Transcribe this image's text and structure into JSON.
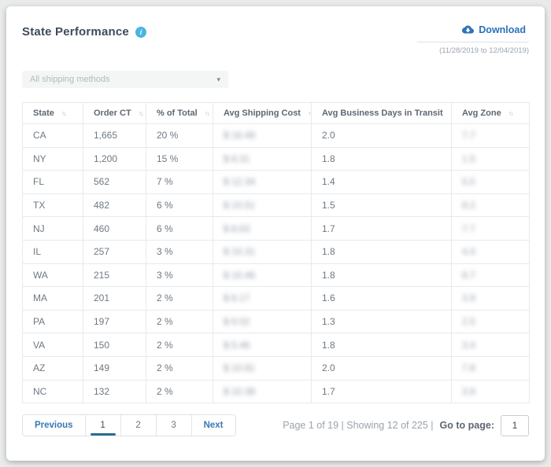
{
  "card": {
    "title": "State Performance",
    "download_label": "Download",
    "date_range": "(11/28/2019 to 12/04/2019)",
    "info_icon": "info-circle-icon",
    "filter": {
      "selected": "All shipping methods",
      "caret": "▾"
    }
  },
  "table": {
    "sort_icon": "↑↓",
    "columns": [
      {
        "label": "State",
        "key": "state"
      },
      {
        "label": "Order CT",
        "key": "order_ct"
      },
      {
        "label": "% of Total",
        "key": "pct_of_total"
      },
      {
        "label": "Avg Shipping Cost",
        "key": "avg_shipping_cost"
      },
      {
        "label": "Avg Business Days in Transit",
        "key": "avg_days_in_transit"
      },
      {
        "label": "Avg Zone",
        "key": "avg_zone"
      }
    ],
    "rows": [
      [
        "CA",
        "1,665",
        "20 %",
        {
          "text": "$ 16.49",
          "blur": true
        },
        "2.0",
        {
          "text": "7.7",
          "blur": true
        }
      ],
      [
        "NY",
        "1,200",
        "15 %",
        {
          "text": "$ 8.31",
          "blur": true
        },
        "1.8",
        {
          "text": "1.5",
          "blur": true
        }
      ],
      [
        "FL",
        "562",
        "7 %",
        {
          "text": "$ 12.34",
          "blur": true
        },
        "1.4",
        {
          "text": "5.5",
          "blur": true
        }
      ],
      [
        "TX",
        "482",
        "6 %",
        {
          "text": "$ 10.51",
          "blur": true
        },
        "1.5",
        {
          "text": "8.2",
          "blur": true
        }
      ],
      [
        "NJ",
        "460",
        "6 %",
        {
          "text": "$ 8.63",
          "blur": true
        },
        "1.7",
        {
          "text": "7.7",
          "blur": true
        }
      ],
      [
        "IL",
        "257",
        "3 %",
        {
          "text": "$ 10.31",
          "blur": true
        },
        "1.8",
        {
          "text": "4.4",
          "blur": true
        }
      ],
      [
        "WA",
        "215",
        "3 %",
        {
          "text": "$ 10.46",
          "blur": true
        },
        "1.8",
        {
          "text": "8.7",
          "blur": true
        }
      ],
      [
        "MA",
        "201",
        "2 %",
        {
          "text": "$ 8.17",
          "blur": true
        },
        "1.6",
        {
          "text": "3.9",
          "blur": true
        }
      ],
      [
        "PA",
        "197",
        "2 %",
        {
          "text": "$ 9.02",
          "blur": true
        },
        "1.3",
        {
          "text": "2.5",
          "blur": true
        }
      ],
      [
        "VA",
        "150",
        "2 %",
        {
          "text": "$ 5.46",
          "blur": true
        },
        "1.8",
        {
          "text": "3.4",
          "blur": true
        }
      ],
      [
        "AZ",
        "149",
        "2 %",
        {
          "text": "$ 10.81",
          "blur": true
        },
        "2.0",
        {
          "text": "7.8",
          "blur": true
        }
      ],
      [
        "NC",
        "132",
        "2 %",
        {
          "text": "$ 10.38",
          "blur": true
        },
        "1.7",
        {
          "text": "3.9",
          "blur": true
        }
      ]
    ]
  },
  "pagination": {
    "previous_label": "Previous",
    "pages": [
      "1",
      "2",
      "3"
    ],
    "active_page": "1",
    "next_label": "Next"
  },
  "footer": {
    "summary": "Page 1 of 19 | Showing 12 of 225 |",
    "goto_label": "Go to page:",
    "goto_value": "1"
  },
  "colors": {
    "accent_blue": "#2d72b8",
    "info_blue": "#4cb4e1",
    "active_page_bar": "#2f6c8e",
    "table_border": "#e7e9eb",
    "page_background": "#e9eaea"
  }
}
